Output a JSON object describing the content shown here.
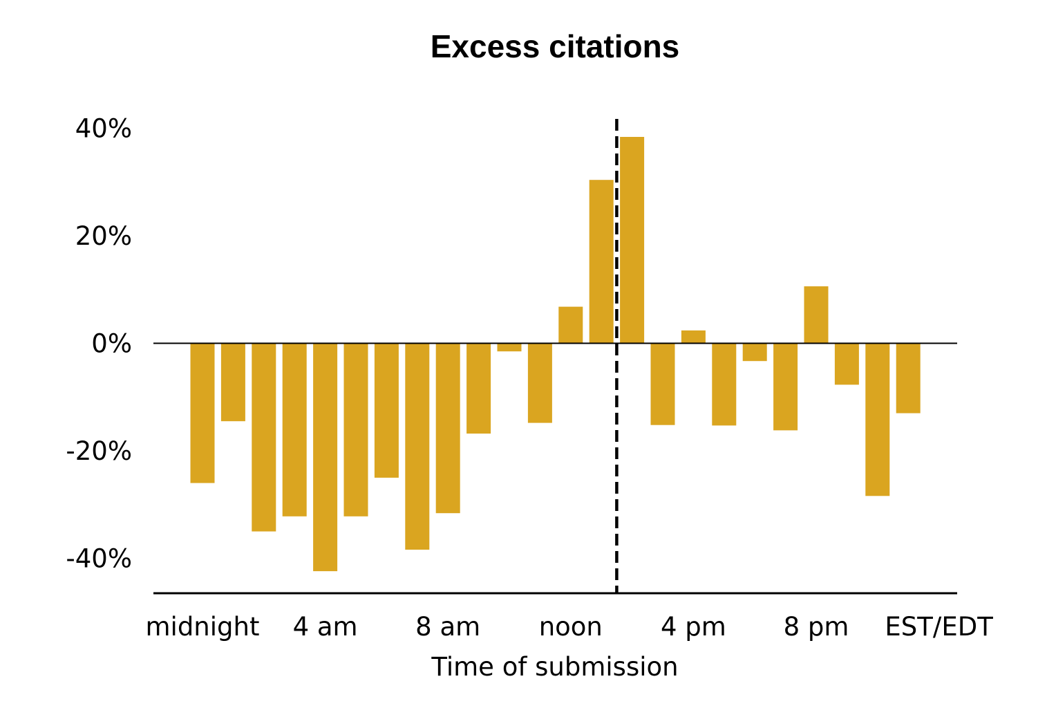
{
  "chart_data": {
    "type": "bar",
    "title": "Excess citations",
    "xlabel": "Time of submission",
    "ylabel": "",
    "ylim": [
      -46.5,
      42
    ],
    "yticks": [
      40,
      20,
      0,
      -20,
      -40
    ],
    "ytick_labels": [
      "40%",
      "20%",
      "0%",
      "-20%",
      "-40%"
    ],
    "xtick_labels": [
      "midnight",
      "4 am",
      "8 am",
      "noon",
      "4 pm",
      "8 pm",
      "EST/EDT"
    ],
    "xtick_hours": [
      0,
      4,
      8,
      12,
      16,
      20,
      24
    ],
    "categories": [
      "0",
      "1",
      "2",
      "3",
      "4",
      "5",
      "6",
      "7",
      "8",
      "9",
      "10",
      "11",
      "12",
      "13",
      "14",
      "15",
      "16",
      "17",
      "18",
      "19",
      "20",
      "21",
      "22",
      "23"
    ],
    "values": [
      -26.0,
      -14.5,
      -35.0,
      -32.2,
      -42.4,
      -32.2,
      -25.0,
      -38.4,
      -31.6,
      -16.8,
      -1.5,
      -14.8,
      6.8,
      30.4,
      38.4,
      -15.2,
      2.4,
      -15.3,
      -3.3,
      -16.2,
      10.6,
      -7.7,
      -28.4,
      -13.0
    ],
    "bar_color": "#DAA520",
    "reference_line": {
      "style": "dashed",
      "color": "#000000",
      "hour": 13.5
    },
    "grid": false,
    "legend": "none"
  }
}
